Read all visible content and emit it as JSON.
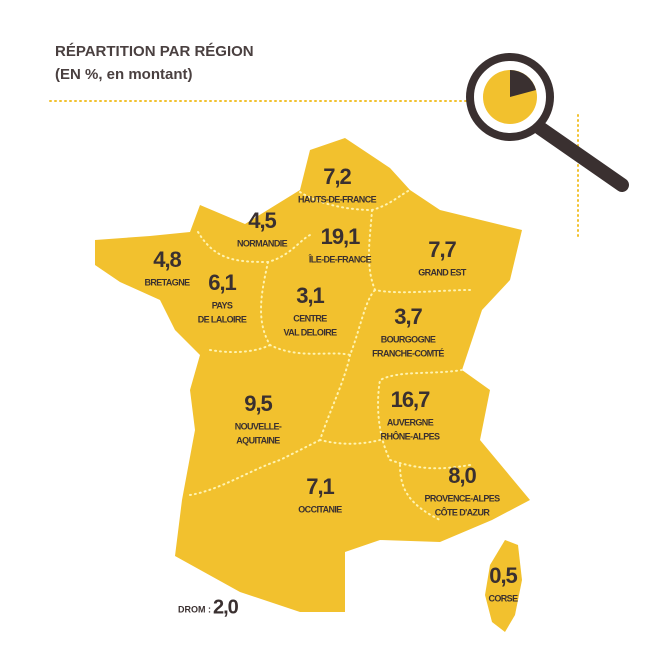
{
  "header": {
    "title": "RÉPARTITION PAR RÉGION",
    "subtitle": "(EN %, en montant)"
  },
  "regions": [
    {
      "value": "7,2",
      "name": [
        "HAUTS-DE-FRANCE"
      ]
    },
    {
      "value": "4,5",
      "name": [
        "NORMANDIE"
      ]
    },
    {
      "value": "19,1",
      "name": [
        "ÎLE-DE-FRANCE"
      ]
    },
    {
      "value": "4,8",
      "name": [
        "BRETAGNE"
      ]
    },
    {
      "value": "7,7",
      "name": [
        "GRAND EST"
      ]
    },
    {
      "value": "6,1",
      "name": [
        "PAYS",
        "DE LALOIRE"
      ]
    },
    {
      "value": "3,1",
      "name": [
        "CENTRE",
        "VAL DELOIRE"
      ]
    },
    {
      "value": "3,7",
      "name": [
        "BOURGOGNE",
        "FRANCHE-COMTÉ"
      ]
    },
    {
      "value": "9,5",
      "name": [
        "NOUVELLE-",
        "AQUITAINE"
      ]
    },
    {
      "value": "16,7",
      "name": [
        "AUVERGNE",
        "RHÔNE-ALPES"
      ]
    },
    {
      "value": "8,0",
      "name": [
        "PROVENCE-ALPES",
        "CÔTE D'AZUR"
      ]
    },
    {
      "value": "7,1",
      "name": [
        "OCCITANIE"
      ]
    },
    {
      "value": "0,5",
      "name": [
        "CORSE"
      ]
    }
  ],
  "drom": {
    "label": "DROM :",
    "value": "2,0"
  }
}
